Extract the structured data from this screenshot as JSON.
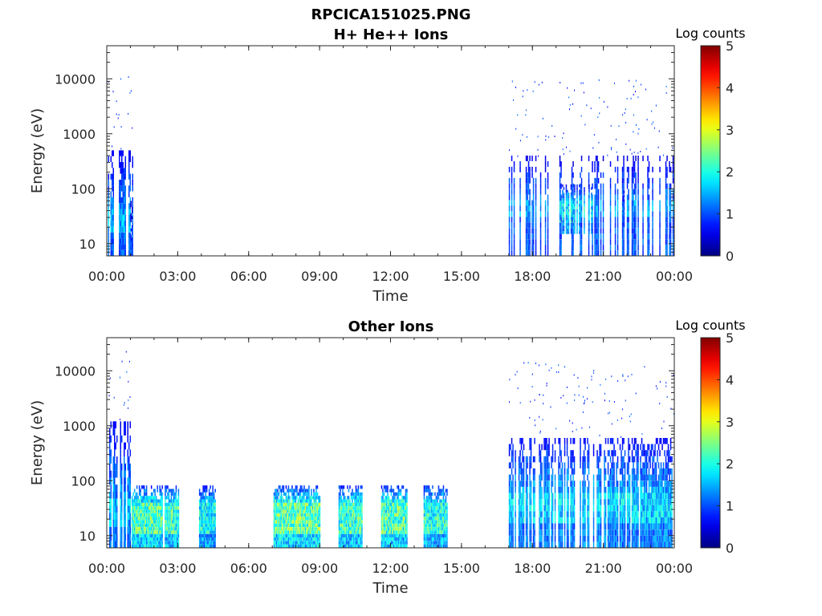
{
  "figure": {
    "suptitle": "RPCICA151025.PNG"
  },
  "chart_data": [
    {
      "type": "heatmap",
      "title": "H+ He++ Ions",
      "xlabel": "Time",
      "ylabel": "Energy (eV)",
      "x_tick_labels": [
        "00:00",
        "03:00",
        "06:00",
        "09:00",
        "12:00",
        "15:00",
        "18:00",
        "21:00",
        "00:00"
      ],
      "x_range_hours": [
        0,
        24
      ],
      "y_tick_labels": [
        "10",
        "100",
        "1000",
        "10000"
      ],
      "y_scale": "log",
      "y_range": [
        6,
        40000
      ],
      "colorbar": {
        "label": "Log counts",
        "range": [
          0,
          5
        ],
        "ticks": [
          "0",
          "1",
          "2",
          "3",
          "4",
          "5"
        ],
        "colormap": "jet"
      },
      "regions": [
        {
          "t_start": 0.0,
          "t_end": 1.1,
          "e_low": 6,
          "e_high": 500,
          "core_e_low": 15,
          "core_e_high": 45,
          "level": 1.6,
          "density": 0.5
        },
        {
          "t_start": 1.0,
          "t_end": 1.1,
          "e_low": 6,
          "e_high": 60,
          "core_e_low": 6,
          "core_e_high": 10,
          "level": 1.0,
          "density": 0.9
        },
        {
          "t_start": 16.95,
          "t_end": 24.0,
          "e_low": 6,
          "e_high": 400,
          "core_e_low": 30,
          "core_e_high": 60,
          "level": 1.5,
          "density": 0.35
        },
        {
          "t_start": 19.0,
          "t_end": 20.5,
          "e_low": 15,
          "e_high": 120,
          "core_e_low": 25,
          "core_e_high": 60,
          "level": 1.9,
          "density": 0.5
        },
        {
          "t_start": 21.8,
          "t_end": 22.0,
          "e_low": 20,
          "e_high": 100,
          "core_e_low": 30,
          "core_e_high": 45,
          "level": 1.3,
          "density": 0.8
        }
      ]
    },
    {
      "type": "heatmap",
      "title": "Other Ions",
      "xlabel": "Time",
      "ylabel": "Energy (eV)",
      "x_tick_labels": [
        "00:00",
        "03:00",
        "06:00",
        "09:00",
        "12:00",
        "15:00",
        "18:00",
        "21:00",
        "00:00"
      ],
      "x_range_hours": [
        0,
        24
      ],
      "y_tick_labels": [
        "10",
        "100",
        "1000",
        "10000"
      ],
      "y_scale": "log",
      "y_range": [
        6,
        40000
      ],
      "colorbar": {
        "label": "Log counts",
        "range": [
          0,
          5
        ],
        "ticks": [
          "0",
          "1",
          "2",
          "3",
          "4",
          "5"
        ],
        "colormap": "jet"
      },
      "regions": [
        {
          "t_start": 0.0,
          "t_end": 1.0,
          "e_low": 6,
          "e_high": 1200,
          "core_e_low": 15,
          "core_e_high": 50,
          "level": 1.7,
          "density": 0.5
        },
        {
          "t_start": 1.05,
          "t_end": 2.35,
          "e_low": 6,
          "e_high": 82,
          "core_e_low": 10,
          "core_e_high": 40,
          "level": 2.4,
          "density": 0.95
        },
        {
          "t_start": 2.45,
          "t_end": 3.05,
          "e_low": 6,
          "e_high": 82,
          "core_e_low": 10,
          "core_e_high": 40,
          "level": 2.3,
          "density": 0.95
        },
        {
          "t_start": 3.9,
          "t_end": 4.6,
          "e_low": 6,
          "e_high": 82,
          "core_e_low": 10,
          "core_e_high": 40,
          "level": 2.0,
          "density": 0.95
        },
        {
          "t_start": 7.05,
          "t_end": 9.0,
          "e_low": 6,
          "e_high": 82,
          "core_e_low": 10,
          "core_e_high": 40,
          "level": 2.5,
          "density": 0.95
        },
        {
          "t_start": 9.8,
          "t_end": 10.8,
          "e_low": 6,
          "e_high": 82,
          "core_e_low": 10,
          "core_e_high": 40,
          "level": 2.3,
          "density": 0.95
        },
        {
          "t_start": 11.6,
          "t_end": 12.7,
          "e_low": 6,
          "e_high": 82,
          "core_e_low": 10,
          "core_e_high": 40,
          "level": 2.4,
          "density": 0.95
        },
        {
          "t_start": 13.4,
          "t_end": 14.4,
          "e_low": 6,
          "e_high": 82,
          "core_e_low": 10,
          "core_e_high": 40,
          "level": 2.2,
          "density": 0.95
        },
        {
          "t_start": 16.95,
          "t_end": 24.0,
          "e_low": 6,
          "e_high": 600,
          "core_e_low": 15,
          "core_e_high": 60,
          "level": 1.8,
          "density": 0.7
        }
      ]
    }
  ]
}
